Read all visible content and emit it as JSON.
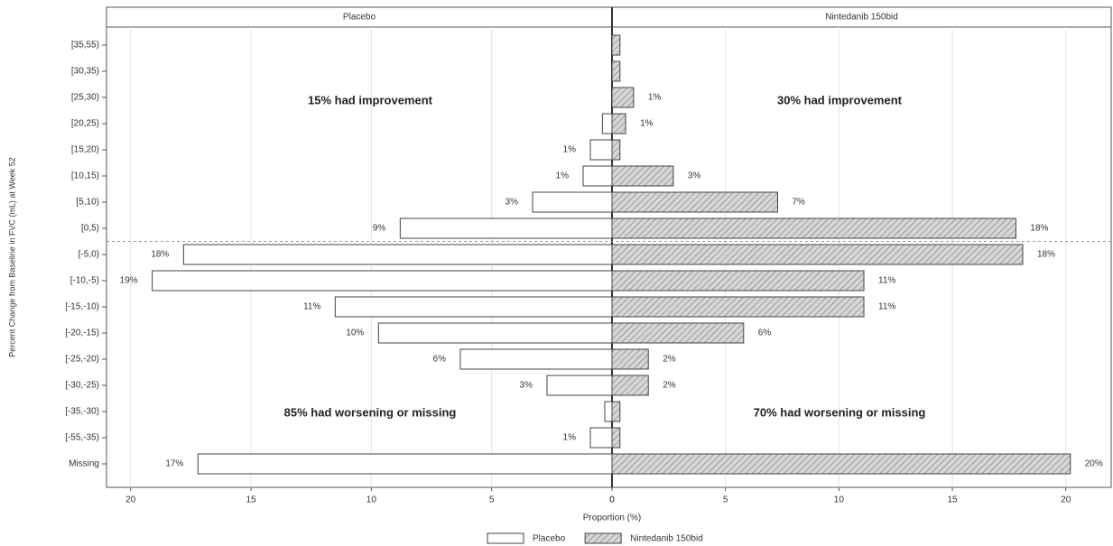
{
  "chart_data": {
    "type": "butterfly",
    "y_label": "Percent Change from Baseline in FVC (mL) at Week 52",
    "x_label": "Proportion (%)",
    "categories": [
      "[35,55)",
      "[30,35)",
      "[25,30)",
      "[20,25)",
      "[15,20)",
      "[10,15)",
      "[5,10)",
      "[0,5)",
      "[-5,0)",
      "[-10,-5)",
      "[-15,-10)",
      "[-20,-15)",
      "[-25,-20)",
      "[-30,-25)",
      "[-35,-30)",
      "[-55,-35)",
      "Missing"
    ],
    "series": [
      {
        "name": "Placebo",
        "color": "#ffffff",
        "hatch": false,
        "side": "left",
        "xlim": [
          0,
          21
        ],
        "xticks": [
          0,
          5,
          10,
          15,
          20
        ],
        "values": [
          0,
          0,
          0,
          0.4,
          0.9,
          1.2,
          3.3,
          8.8,
          17.8,
          19.1,
          11.5,
          9.7,
          6.3,
          2.7,
          0.3,
          0.9,
          17.2
        ],
        "value_labels": [
          null,
          null,
          null,
          null,
          "1%",
          "1%",
          "3%",
          "9%",
          "18%",
          "19%",
          "11%",
          "10%",
          "6%",
          "3%",
          null,
          "1%",
          "17%"
        ]
      },
      {
        "name": "Nintedanib 150bid",
        "color": "#d6d6d6",
        "hatch": true,
        "side": "right",
        "xlim": [
          0,
          22
        ],
        "xticks": [
          0,
          5,
          10,
          15,
          20
        ],
        "values": [
          0.35,
          0.35,
          0.95,
          0.6,
          0.35,
          2.7,
          7.3,
          17.8,
          18.1,
          11.1,
          11.1,
          5.8,
          1.6,
          1.6,
          0.35,
          0.35,
          20.2
        ],
        "value_labels": [
          null,
          null,
          "1%",
          "1%",
          null,
          "3%",
          "7%",
          "18%",
          "18%",
          "11%",
          "11%",
          "6%",
          "2%",
          "2%",
          null,
          null,
          "20%"
        ]
      }
    ],
    "annotations": [
      "15% had improvement",
      "30% had improvement",
      "85% had worsening or missing",
      "70% had worsening or missing"
    ],
    "grid": true
  }
}
